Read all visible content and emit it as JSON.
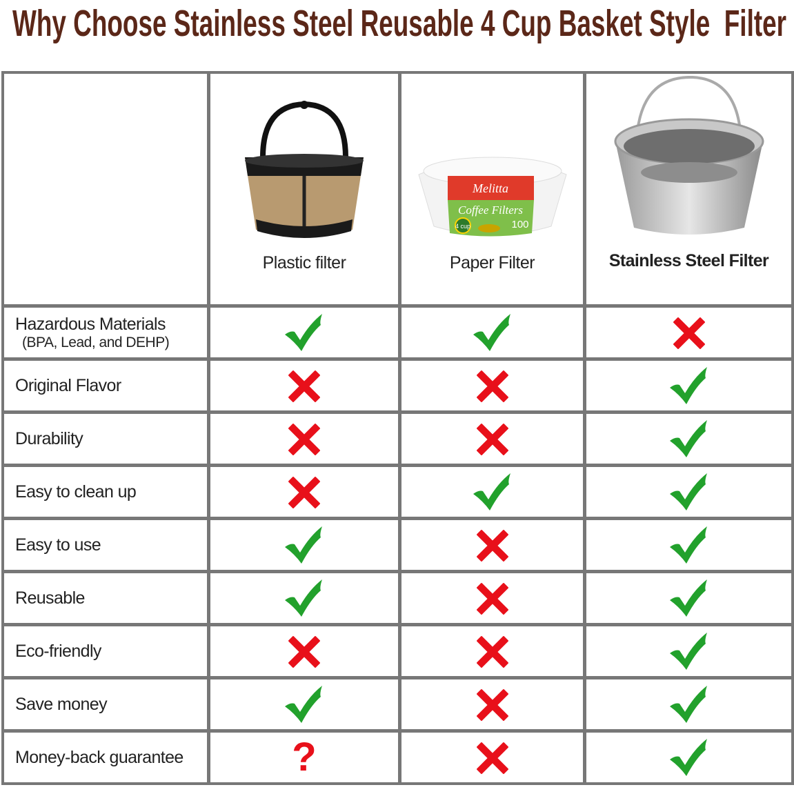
{
  "title": "Why Choose Stainless Steel Reusable 4 Cup Basket Style  Filter",
  "colors": {
    "title": "#5b2718",
    "grid": "#777777",
    "check": "#22a12c",
    "cross": "#e8101a"
  },
  "columns": [
    {
      "name": "Plastic filter",
      "image": "plastic-basket-filter"
    },
    {
      "name": "Paper Filter",
      "image": "paper-filter-pack",
      "package_text": {
        "brand": "Melitta",
        "product": "Coffee Filters",
        "count": "100",
        "badge": "4 cup"
      }
    },
    {
      "name": "Stainless Steel  Filter",
      "image": "stainless-steel-basket"
    }
  ],
  "rows": [
    {
      "label": "Hazardous Materials",
      "sublabel": "(BPA, Lead, and DEHP)",
      "values": [
        "check",
        "check",
        "cross"
      ]
    },
    {
      "label": "Original Flavor",
      "values": [
        "cross",
        "cross",
        "check"
      ]
    },
    {
      "label": "Durability",
      "values": [
        "cross",
        "cross",
        "check"
      ]
    },
    {
      "label": "Easy to clean up",
      "values": [
        "cross",
        "check",
        "check"
      ]
    },
    {
      "label": "Easy to use",
      "values": [
        "check",
        "cross",
        "check"
      ]
    },
    {
      "label": "Reusable",
      "values": [
        "check",
        "cross",
        "check"
      ]
    },
    {
      "label": "Eco-friendly",
      "values": [
        "cross",
        "cross",
        "check"
      ]
    },
    {
      "label": "Save money",
      "values": [
        "check",
        "cross",
        "check"
      ]
    },
    {
      "label": "Money-back guarantee",
      "values": [
        "question",
        "cross",
        "check"
      ]
    }
  ],
  "question_mark": "?"
}
